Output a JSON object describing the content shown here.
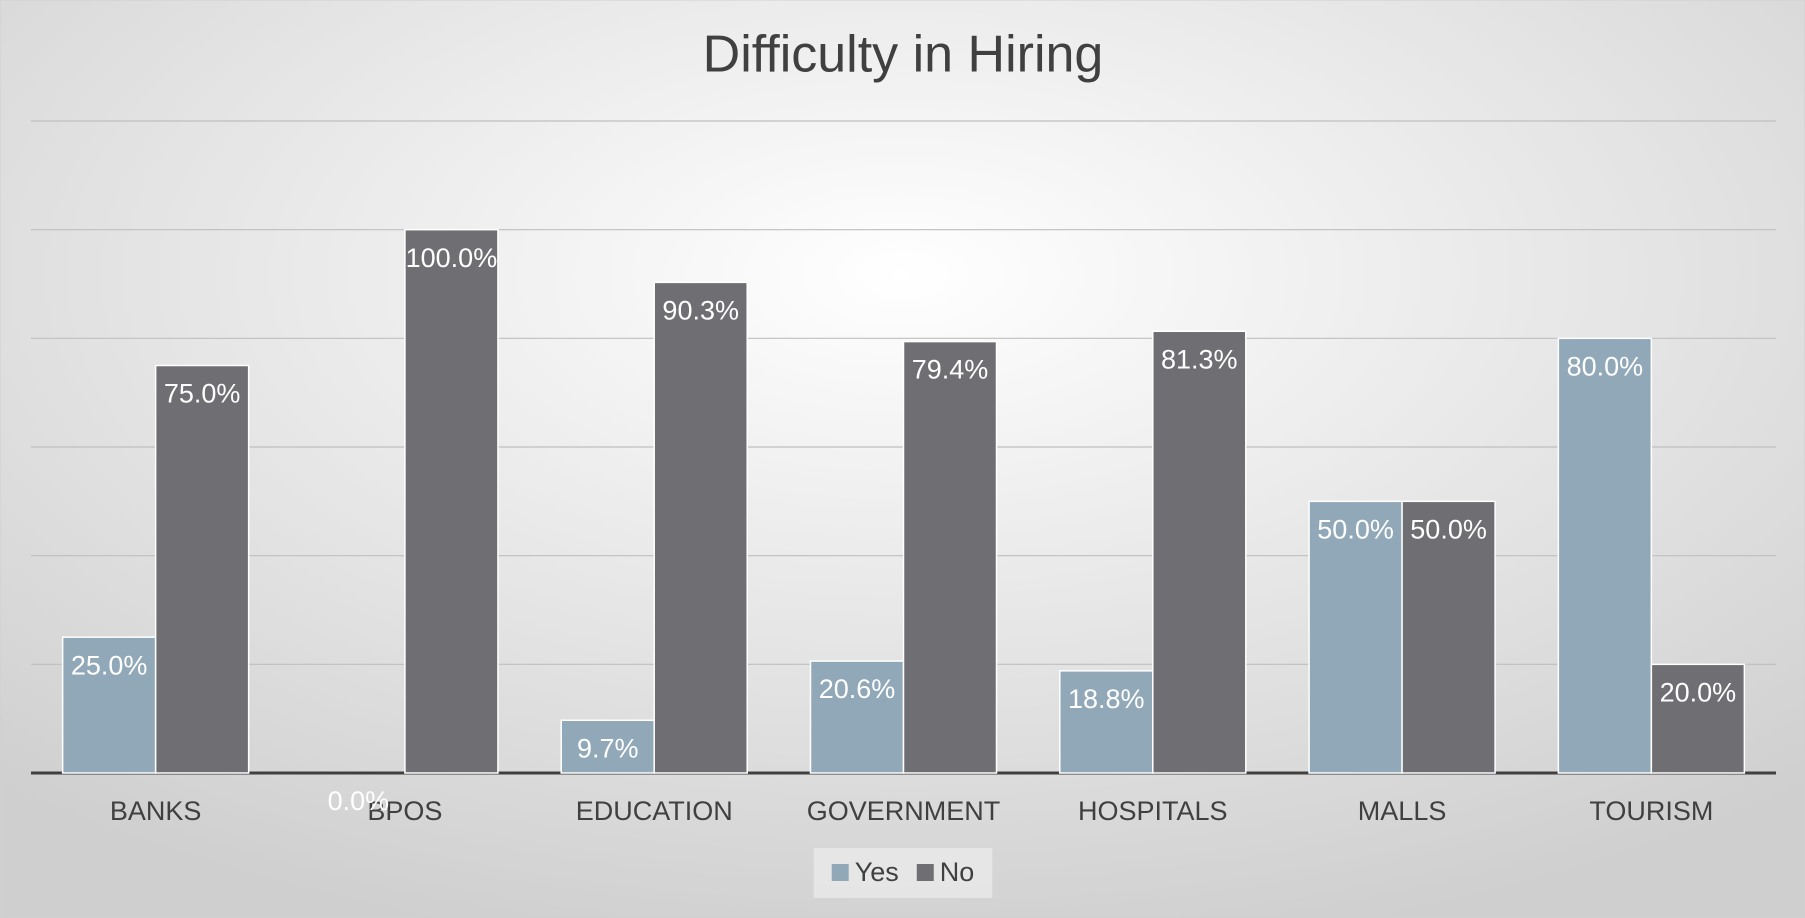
{
  "chart_data": {
    "type": "bar",
    "title": "Difficulty in Hiring",
    "categories": [
      "BANKS",
      "BPOS",
      "EDUCATION",
      "GOVERNMENT",
      "HOSPITALS",
      "MALLS",
      "TOURISM"
    ],
    "series": [
      {
        "name": "Yes",
        "color": "#91a8b8",
        "values": [
          25.0,
          0.0,
          9.7,
          20.6,
          18.8,
          50.0,
          80.0
        ],
        "value_labels": [
          "25.0%",
          "0.0%",
          "9.7%",
          "20.6%",
          "18.8%",
          "50.0%",
          "80.0%"
        ]
      },
      {
        "name": "No",
        "color": "#6f6e73",
        "values": [
          75.0,
          100.0,
          90.3,
          79.4,
          81.3,
          50.0,
          20.0
        ],
        "value_labels": [
          "75.0%",
          "100.0%",
          "90.3%",
          "79.4%",
          "81.3%",
          "50.0%",
          "20.0%"
        ]
      }
    ],
    "ylim": [
      0,
      120
    ],
    "yticks": [
      0,
      20,
      40,
      60,
      80,
      100,
      120
    ],
    "grid": true,
    "legend": "bottom"
  }
}
